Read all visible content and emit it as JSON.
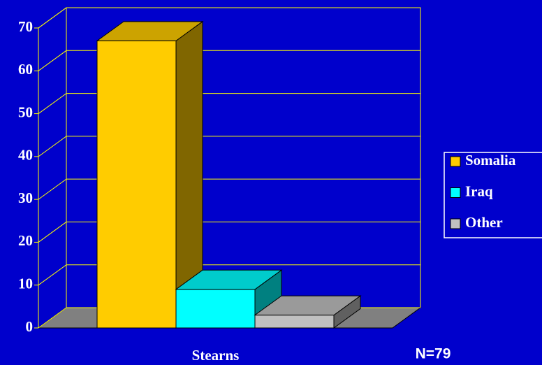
{
  "chart_data": {
    "type": "bar3d",
    "categories": [
      "Stearns"
    ],
    "series": [
      {
        "name": "Somalia",
        "color": "#ffcc00",
        "values": [
          67
        ]
      },
      {
        "name": "Iraq",
        "color": "#00ffff",
        "values": [
          9
        ]
      },
      {
        "name": "Other",
        "color": "#c0c0c0",
        "values": [
          3
        ]
      }
    ],
    "ylim": [
      0,
      70
    ],
    "yticks": [
      0,
      10,
      20,
      30,
      40,
      50,
      60,
      70
    ],
    "grid": true,
    "legend": "right",
    "annotation": "N=79"
  }
}
